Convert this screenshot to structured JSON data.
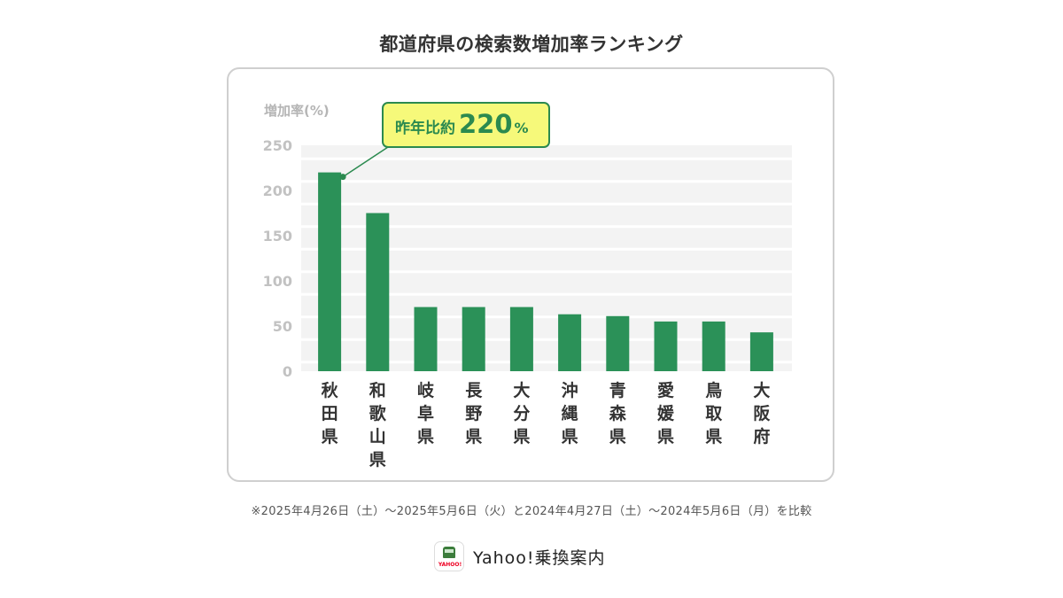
{
  "title": "都道府県の検索数増加率ランキング",
  "chart_data": {
    "type": "bar",
    "ylabel": "増加率(%)",
    "ylim": [
      0,
      250
    ],
    "yticks": [
      0,
      50,
      100,
      150,
      200,
      250
    ],
    "categories": [
      "秋田県",
      "和歌山県",
      "岐阜県",
      "長野県",
      "大分県",
      "沖縄県",
      "青森県",
      "愛媛県",
      "鳥取県",
      "大阪府"
    ],
    "values": [
      220,
      175,
      71,
      71,
      71,
      63,
      61,
      55,
      55,
      43
    ],
    "bar_color": "#2b9158",
    "grid": true,
    "annotation": {
      "target_category": "秋田県",
      "prefix": "昨年比約",
      "value": "220",
      "unit": "%",
      "background": "#f6f97a",
      "border": "#2b8a4f"
    }
  },
  "footnote": "※2025年4月26日（土）〜2025年5月6日（火）と2024年4月27日（土）〜2024年5月6日（月）を比較",
  "brand": {
    "icon_text": "YAHOO!",
    "name": "Yahoo!乗換案内"
  }
}
